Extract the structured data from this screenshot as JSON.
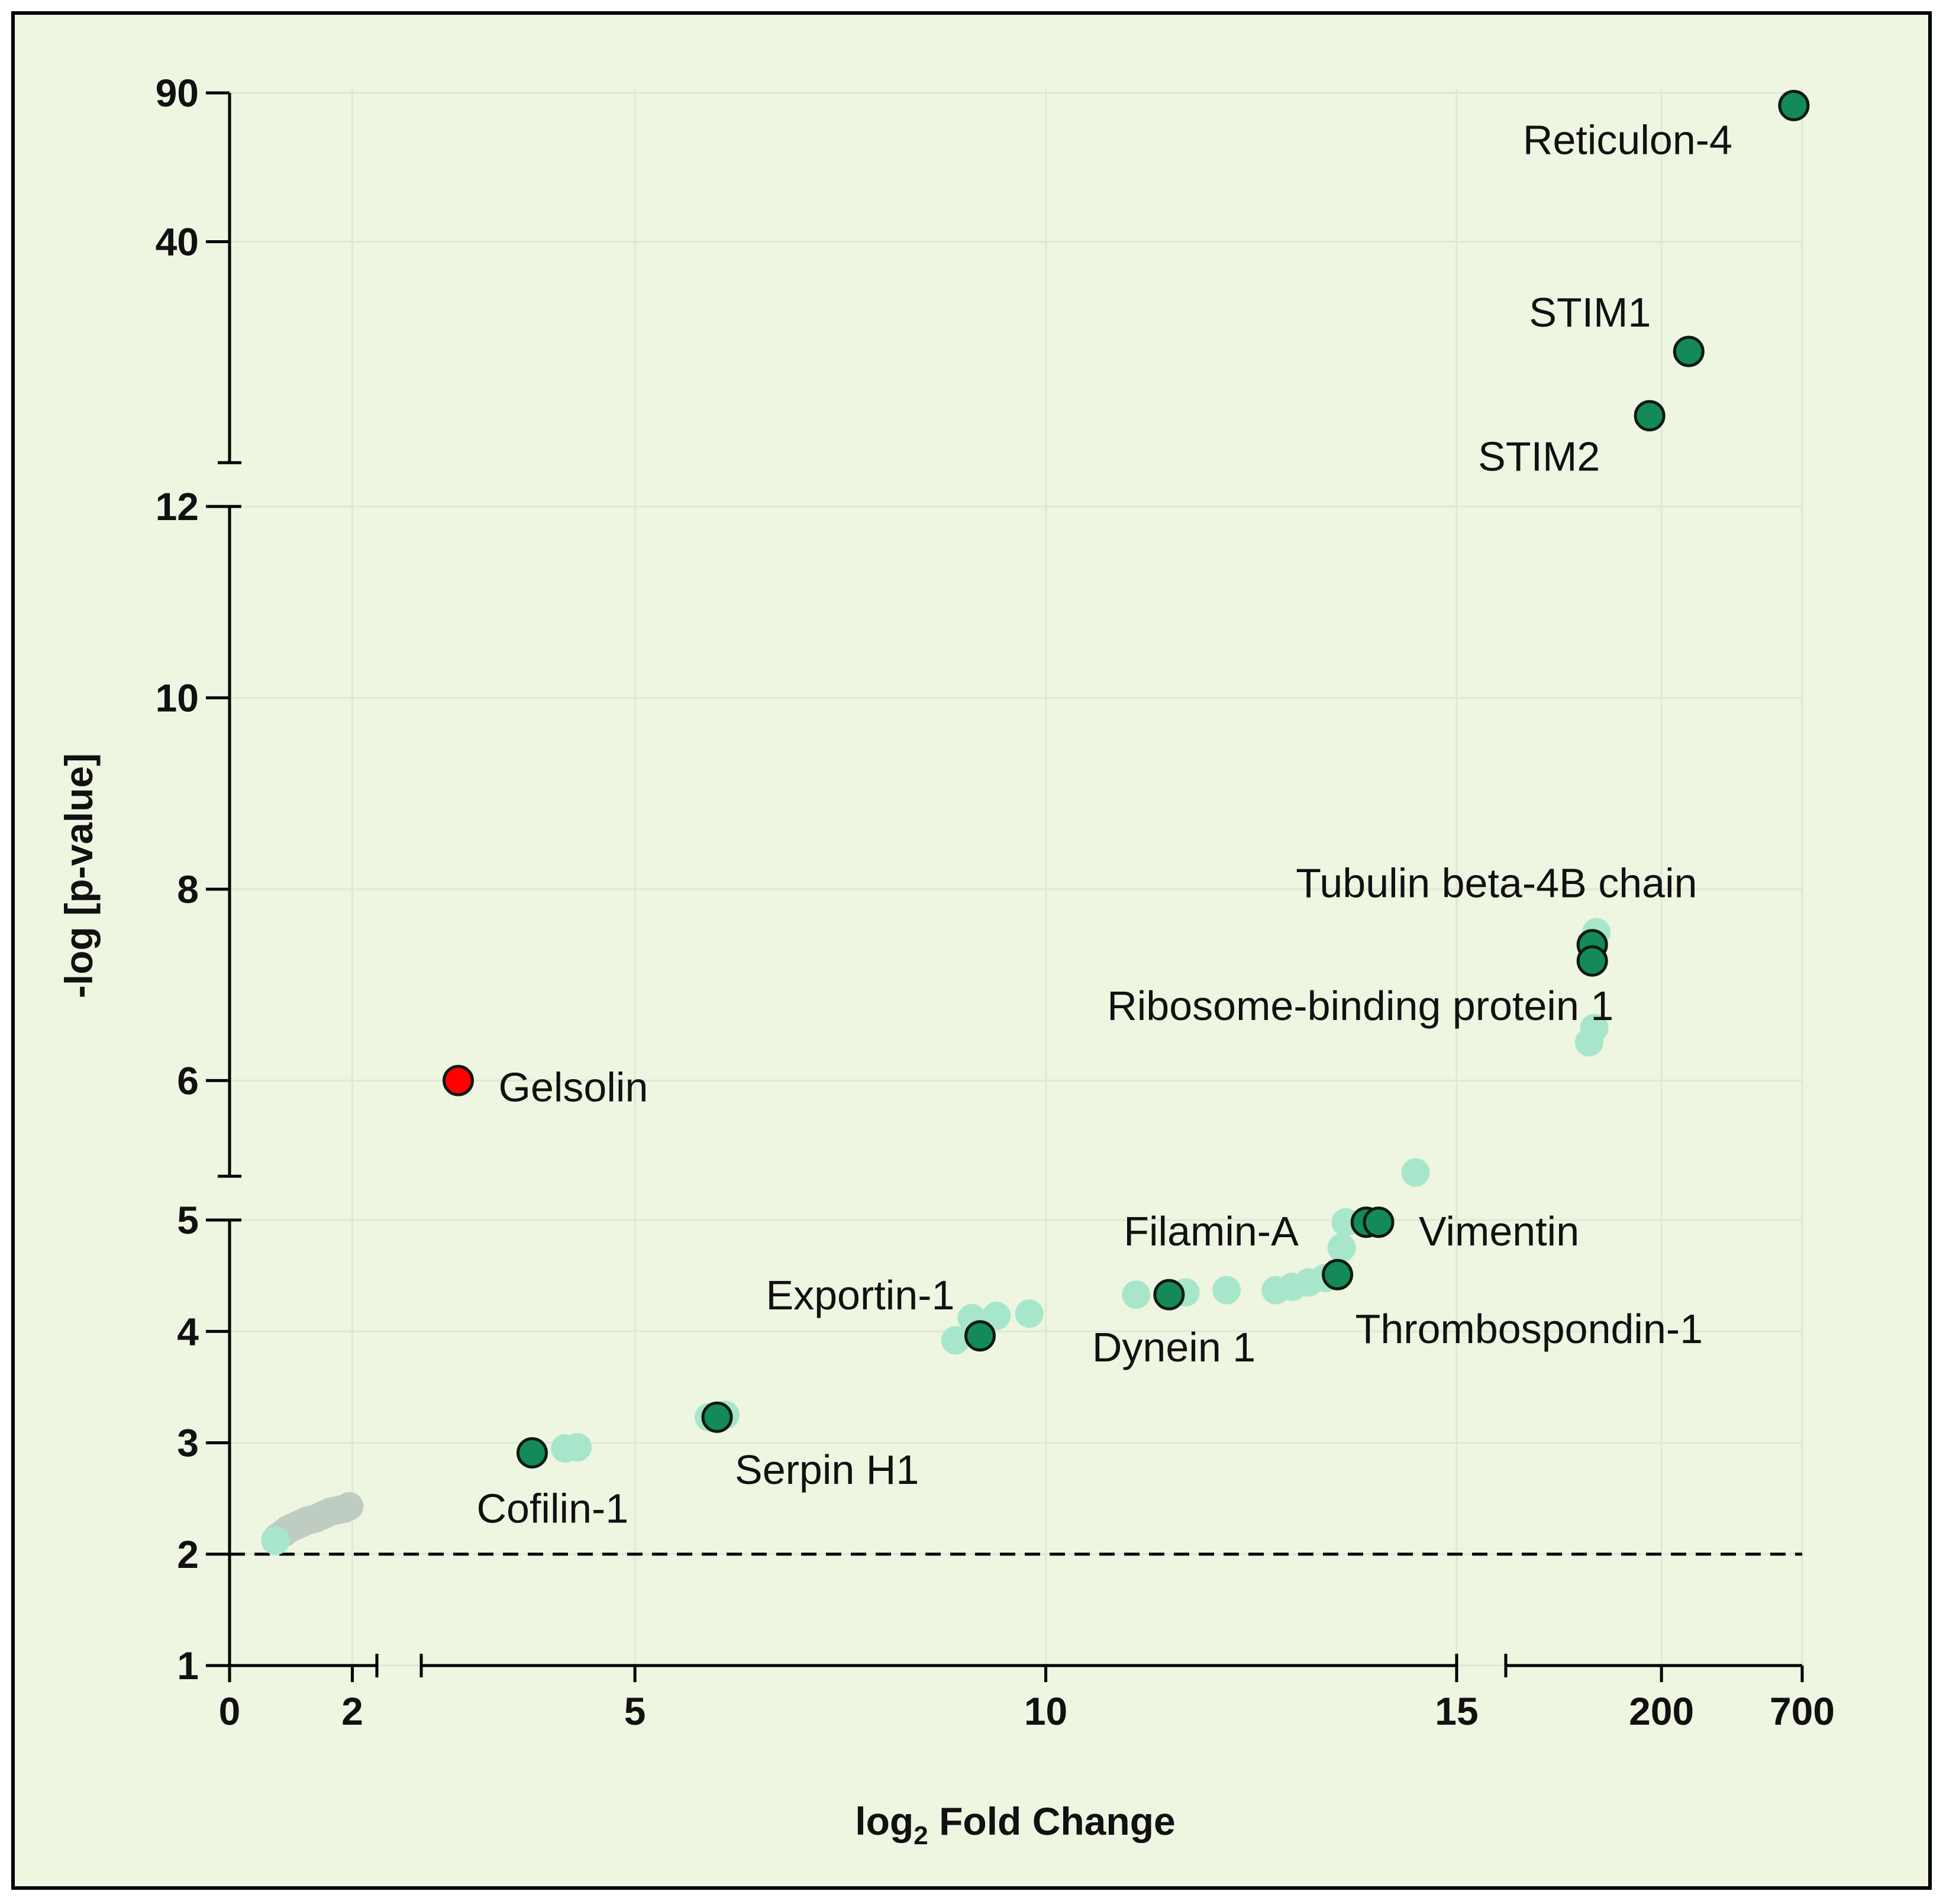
{
  "colors": {
    "background": "#eef5e1",
    "border": "#000000",
    "highlight_point": "#138a58",
    "background_point": "#a8e6cc",
    "gray_point": "#bfccc1",
    "gelsolin_point": "#ff0000",
    "threshold_line": "#000000"
  },
  "chart_data": {
    "type": "scatter",
    "title": "",
    "xlabel": "log2 Fold Change",
    "ylabel": "-log [p-value]",
    "x_segments": [
      {
        "range": [
          0,
          2.4
        ],
        "ticks": [
          0,
          2
        ],
        "tick_labels": [
          "0",
          "2"
        ]
      },
      {
        "range": [
          2.4,
          15
        ],
        "ticks": [
          5,
          10,
          15
        ],
        "tick_labels": [
          "5",
          "10",
          "15"
        ]
      },
      {
        "range": [
          50,
          700
        ],
        "ticks": [
          200,
          700
        ],
        "tick_labels": [
          "200",
          "700"
        ]
      }
    ],
    "y_segments": [
      {
        "range": [
          1,
          5
        ],
        "ticks": [
          1,
          2,
          3,
          4,
          5
        ],
        "tick_labels": [
          "1",
          "2",
          "3",
          "4",
          "5"
        ]
      },
      {
        "range": [
          5,
          12
        ],
        "ticks": [
          6,
          8,
          10,
          12
        ],
        "tick_labels": [
          "6",
          "8",
          "10",
          "12"
        ]
      },
      {
        "range": [
          12,
          90
        ],
        "ticks": [
          40,
          90
        ],
        "tick_labels": [
          "40",
          "90"
        ]
      }
    ],
    "threshold": {
      "y": 2,
      "style": "dashed"
    },
    "series": [
      {
        "name": "gray",
        "points": [
          {
            "x": 0.75,
            "y": 2.13
          },
          {
            "x": 0.8,
            "y": 2.16
          },
          {
            "x": 0.88,
            "y": 2.19
          },
          {
            "x": 0.95,
            "y": 2.22
          },
          {
            "x": 1.02,
            "y": 2.24
          },
          {
            "x": 1.1,
            "y": 2.26
          },
          {
            "x": 1.18,
            "y": 2.28
          },
          {
            "x": 1.26,
            "y": 2.3
          },
          {
            "x": 1.33,
            "y": 2.31
          },
          {
            "x": 1.4,
            "y": 2.32
          },
          {
            "x": 1.48,
            "y": 2.34
          },
          {
            "x": 1.56,
            "y": 2.36
          },
          {
            "x": 1.64,
            "y": 2.38
          },
          {
            "x": 1.72,
            "y": 2.39
          },
          {
            "x": 1.8,
            "y": 2.4
          },
          {
            "x": 1.88,
            "y": 2.41
          },
          {
            "x": 1.95,
            "y": 2.43
          }
        ]
      },
      {
        "name": "background",
        "points": [
          {
            "x": 0.75,
            "y": 2.12
          },
          {
            "x": 4.15,
            "y": 2.95
          },
          {
            "x": 4.3,
            "y": 2.96
          },
          {
            "x": 5.9,
            "y": 3.23
          },
          {
            "x": 6.1,
            "y": 3.25
          },
          {
            "x": 8.9,
            "y": 3.92
          },
          {
            "x": 9.1,
            "y": 4.12
          },
          {
            "x": 9.4,
            "y": 4.14
          },
          {
            "x": 9.8,
            "y": 4.16
          },
          {
            "x": 11.1,
            "y": 4.33
          },
          {
            "x": 11.7,
            "y": 4.35
          },
          {
            "x": 12.2,
            "y": 4.37
          },
          {
            "x": 12.8,
            "y": 4.37
          },
          {
            "x": 13.0,
            "y": 4.4
          },
          {
            "x": 13.2,
            "y": 4.44
          },
          {
            "x": 13.4,
            "y": 4.48
          },
          {
            "x": 13.6,
            "y": 4.75
          },
          {
            "x": 13.65,
            "y": 4.98
          },
          {
            "x": 14.5,
            "y": 5.04
          },
          {
            "x": 105,
            "y": 6.4
          },
          {
            "x": 110,
            "y": 6.55
          },
          {
            "x": 112,
            "y": 7.55
          }
        ]
      },
      {
        "name": "highlighted",
        "points": [
          {
            "x": 3.75,
            "y": 2.91,
            "label": "Cofilin-1"
          },
          {
            "x": 6.0,
            "y": 3.23,
            "label": "Serpin H1"
          },
          {
            "x": 9.2,
            "y": 3.96,
            "label": "Exportin-1"
          },
          {
            "x": 11.5,
            "y": 4.33,
            "label": "Dynein 1"
          },
          {
            "x": 13.55,
            "y": 4.51,
            "label": "Thrombospondin-1"
          },
          {
            "x": 13.9,
            "y": 4.98,
            "label": "Filamin-A"
          },
          {
            "x": 14.05,
            "y": 4.98,
            "label": "Vimentin"
          },
          {
            "x": 108,
            "y": 7.42,
            "label": "Tubulin beta-4B chain"
          },
          {
            "x": 108,
            "y": 7.25,
            "label": "Ribosome-binding protein 1"
          },
          {
            "x": 180,
            "y": 15.5,
            "label": "STIM2"
          },
          {
            "x": 255,
            "y": 22.0,
            "label": "STIM1"
          },
          {
            "x": 650,
            "y": 84.0,
            "label": "Reticulon-4"
          }
        ]
      },
      {
        "name": "gelsolin",
        "points": [
          {
            "x": 2.85,
            "y": 6.0,
            "label": "Gelsolin"
          }
        ]
      }
    ]
  }
}
